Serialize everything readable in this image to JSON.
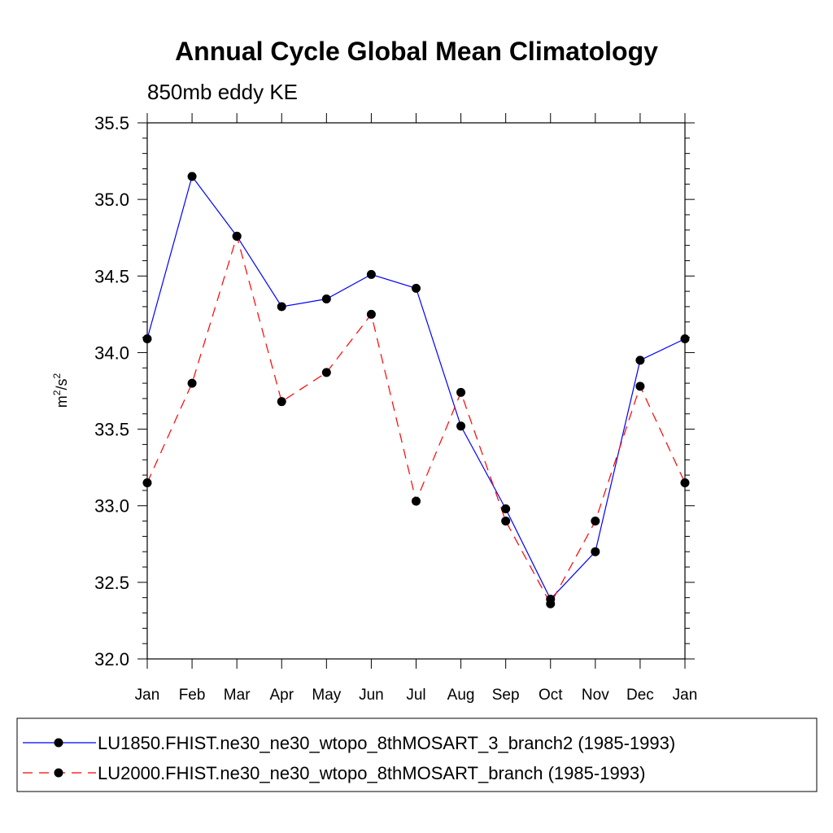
{
  "chart_data": {
    "type": "line",
    "title": "Annual Cycle Global Mean Climatology",
    "subtitle": "850mb eddy KE",
    "ylabel_base": "m",
    "ylabel_sup1": "2",
    "ylabel_mid": "/s",
    "ylabel_sup2": "2",
    "categories": [
      "Jan",
      "Feb",
      "Mar",
      "Apr",
      "May",
      "Jun",
      "Jul",
      "Aug",
      "Sep",
      "Oct",
      "Nov",
      "Dec",
      "Jan"
    ],
    "yticks": [
      "32.0",
      "32.5",
      "33.0",
      "33.5",
      "34.0",
      "34.5",
      "35.0",
      "35.5"
    ],
    "ylim": [
      32.0,
      35.5
    ],
    "grid": false,
    "legend_position": "bottom",
    "series": [
      {
        "name": "LU1850.FHIST.ne30_ne30_wtopo_8thMOSART_3_branch2 (1985-1993)",
        "color": "#0000ff",
        "dash": "solid",
        "values": [
          34.09,
          35.15,
          34.76,
          34.3,
          34.35,
          34.51,
          34.42,
          33.52,
          32.98,
          32.39,
          32.7,
          33.95,
          34.09
        ]
      },
      {
        "name": "LU2000.FHIST.ne30_ne30_wtopo_8thMOSART_branch (1985-1993)",
        "color": "#ff0000",
        "dash": "dashed",
        "values": [
          33.15,
          33.8,
          34.76,
          33.68,
          33.87,
          34.25,
          33.03,
          33.74,
          32.9,
          32.36,
          32.9,
          33.78,
          33.15
        ]
      }
    ]
  }
}
